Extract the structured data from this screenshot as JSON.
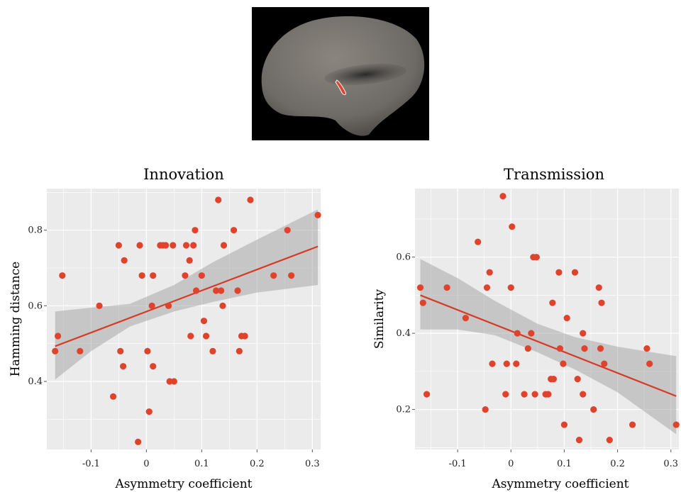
{
  "figure": {
    "brain_image": "inflated-cortex-rendering"
  },
  "colors": {
    "panel_bg": "#ebebeb",
    "grid": "#ffffff",
    "point": "#e0432b",
    "fit_line": "#d63a24",
    "ci_band": "#9a9a9a"
  },
  "chart_data": [
    {
      "type": "scatter",
      "title": "Innovation",
      "xlabel": "Asymmetry coefficient",
      "ylabel": "Hamming distance",
      "xlim": [
        -0.18,
        0.315
      ],
      "ylim": [
        0.22,
        0.91
      ],
      "xticks": [
        -0.1,
        0,
        0.1,
        0.2,
        0.3
      ],
      "xtick_labels": [
        "-0.1",
        "0",
        "0.1",
        "0.2",
        "0.3"
      ],
      "yticks": [
        0.4,
        0.6,
        0.8
      ],
      "ytick_labels": [
        "0.4",
        "0.6",
        "0.8"
      ],
      "grid": true,
      "points": [
        [
          -0.165,
          0.48
        ],
        [
          -0.16,
          0.52
        ],
        [
          -0.152,
          0.68
        ],
        [
          -0.12,
          0.48
        ],
        [
          -0.085,
          0.6
        ],
        [
          -0.06,
          0.36
        ],
        [
          -0.05,
          0.76
        ],
        [
          -0.047,
          0.48
        ],
        [
          -0.042,
          0.44
        ],
        [
          -0.04,
          0.72
        ],
        [
          -0.015,
          0.24
        ],
        [
          -0.012,
          0.76
        ],
        [
          -0.008,
          0.68
        ],
        [
          0.002,
          0.48
        ],
        [
          0.005,
          0.32
        ],
        [
          0.01,
          0.6
        ],
        [
          0.012,
          0.68
        ],
        [
          0.012,
          0.44
        ],
        [
          0.025,
          0.76
        ],
        [
          0.03,
          0.76
        ],
        [
          0.035,
          0.76
        ],
        [
          0.04,
          0.6
        ],
        [
          0.042,
          0.4
        ],
        [
          0.048,
          0.76
        ],
        [
          0.05,
          0.4
        ],
        [
          0.07,
          0.68
        ],
        [
          0.072,
          0.76
        ],
        [
          0.078,
          0.72
        ],
        [
          0.08,
          0.52
        ],
        [
          0.085,
          0.76
        ],
        [
          0.088,
          0.8
        ],
        [
          0.09,
          0.64
        ],
        [
          0.1,
          0.68
        ],
        [
          0.104,
          0.56
        ],
        [
          0.108,
          0.52
        ],
        [
          0.12,
          0.48
        ],
        [
          0.126,
          0.64
        ],
        [
          0.13,
          0.88
        ],
        [
          0.135,
          0.64
        ],
        [
          0.138,
          0.6
        ],
        [
          0.14,
          0.76
        ],
        [
          0.158,
          0.8
        ],
        [
          0.165,
          0.64
        ],
        [
          0.168,
          0.48
        ],
        [
          0.172,
          0.52
        ],
        [
          0.178,
          0.52
        ],
        [
          0.188,
          0.88
        ],
        [
          0.23,
          0.68
        ],
        [
          0.255,
          0.8
        ],
        [
          0.262,
          0.68
        ],
        [
          0.31,
          0.84
        ]
      ],
      "fit": {
        "x": [
          -0.165,
          0.31
        ],
        "y": [
          0.493,
          0.757
        ]
      },
      "ci": {
        "x": [
          -0.165,
          -0.1,
          -0.03,
          0.05,
          0.12,
          0.2,
          0.31
        ],
        "lower": [
          0.405,
          0.48,
          0.545,
          0.585,
          0.61,
          0.635,
          0.655
        ],
        "upper": [
          0.585,
          0.595,
          0.605,
          0.655,
          0.715,
          0.775,
          0.855
        ]
      }
    },
    {
      "type": "scatter",
      "title": "Transmission",
      "xlabel": "Asymmetry coefficient",
      "ylabel": "Similarity",
      "xlim": [
        -0.18,
        0.315
      ],
      "ylim": [
        0.095,
        0.78
      ],
      "xticks": [
        -0.1,
        0,
        0.1,
        0.2,
        0.3
      ],
      "xtick_labels": [
        "-0.1",
        "0",
        "0.1",
        "0.2",
        "0.3"
      ],
      "yticks": [
        0.2,
        0.4,
        0.6
      ],
      "ytick_labels": [
        "0.2",
        "0.4",
        "0.6"
      ],
      "grid": true,
      "points": [
        [
          -0.17,
          0.52
        ],
        [
          -0.165,
          0.48
        ],
        [
          -0.158,
          0.24
        ],
        [
          -0.12,
          0.52
        ],
        [
          -0.085,
          0.44
        ],
        [
          -0.062,
          0.64
        ],
        [
          -0.048,
          0.2
        ],
        [
          -0.045,
          0.52
        ],
        [
          -0.04,
          0.56
        ],
        [
          -0.035,
          0.32
        ],
        [
          -0.015,
          0.76
        ],
        [
          -0.01,
          0.24
        ],
        [
          -0.008,
          0.32
        ],
        [
          0.0,
          0.52
        ],
        [
          0.002,
          0.68
        ],
        [
          0.01,
          0.32
        ],
        [
          0.012,
          0.4
        ],
        [
          0.025,
          0.24
        ],
        [
          0.032,
          0.36
        ],
        [
          0.038,
          0.4
        ],
        [
          0.042,
          0.6
        ],
        [
          0.045,
          0.24
        ],
        [
          0.048,
          0.6
        ],
        [
          0.065,
          0.24
        ],
        [
          0.07,
          0.24
        ],
        [
          0.075,
          0.28
        ],
        [
          0.078,
          0.48
        ],
        [
          0.08,
          0.28
        ],
        [
          0.09,
          0.56
        ],
        [
          0.092,
          0.36
        ],
        [
          0.098,
          0.32
        ],
        [
          0.1,
          0.16
        ],
        [
          0.105,
          0.44
        ],
        [
          0.12,
          0.56
        ],
        [
          0.125,
          0.28
        ],
        [
          0.128,
          0.12
        ],
        [
          0.135,
          0.4
        ],
        [
          0.135,
          0.24
        ],
        [
          0.138,
          0.36
        ],
        [
          0.155,
          0.2
        ],
        [
          0.165,
          0.52
        ],
        [
          0.168,
          0.36
        ],
        [
          0.17,
          0.48
        ],
        [
          0.175,
          0.32
        ],
        [
          0.185,
          0.12
        ],
        [
          0.228,
          0.16
        ],
        [
          0.255,
          0.36
        ],
        [
          0.26,
          0.32
        ],
        [
          0.31,
          0.16
        ]
      ],
      "fit": {
        "x": [
          -0.17,
          0.31
        ],
        "y": [
          0.5,
          0.235
        ]
      },
      "ci": {
        "x": [
          -0.17,
          -0.1,
          -0.03,
          0.05,
          0.12,
          0.2,
          0.31
        ],
        "lower": [
          0.41,
          0.41,
          0.395,
          0.35,
          0.305,
          0.245,
          0.135
        ],
        "upper": [
          0.595,
          0.545,
          0.485,
          0.425,
          0.39,
          0.365,
          0.34
        ]
      }
    }
  ]
}
